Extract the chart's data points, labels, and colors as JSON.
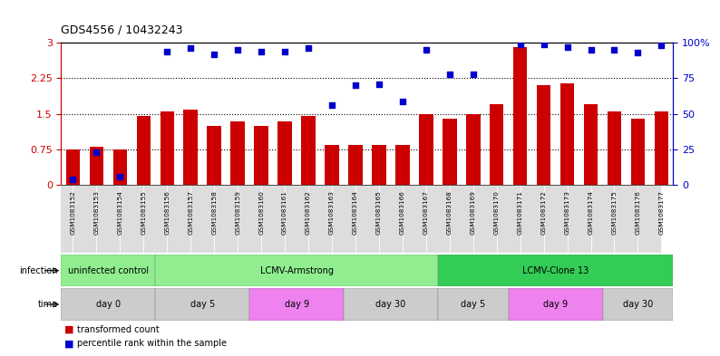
{
  "title": "GDS4556 / 10432243",
  "samples": [
    "GSM1083152",
    "GSM1083153",
    "GSM1083154",
    "GSM1083155",
    "GSM1083156",
    "GSM1083157",
    "GSM1083158",
    "GSM1083159",
    "GSM1083160",
    "GSM1083161",
    "GSM1083162",
    "GSM1083163",
    "GSM1083164",
    "GSM1083165",
    "GSM1083166",
    "GSM1083167",
    "GSM1083168",
    "GSM1083169",
    "GSM1083170",
    "GSM1083171",
    "GSM1083172",
    "GSM1083173",
    "GSM1083174",
    "GSM1083175",
    "GSM1083176",
    "GSM1083177"
  ],
  "red_bars": [
    0.75,
    0.8,
    0.75,
    1.45,
    1.55,
    1.6,
    1.25,
    1.35,
    1.25,
    1.35,
    1.45,
    0.85,
    0.85,
    0.85,
    0.85,
    1.5,
    1.4,
    1.5,
    1.7,
    2.9,
    2.1,
    2.15,
    1.7,
    1.55,
    1.4,
    1.55
  ],
  "blue_dots_pct": [
    4,
    23,
    6,
    null,
    94,
    96,
    92,
    95,
    94,
    94,
    96,
    56,
    70,
    71,
    59,
    95,
    78,
    78,
    null,
    99,
    99,
    97,
    95,
    95,
    93,
    98
  ],
  "ylim_left": [
    0,
    3
  ],
  "ylim_right": [
    0,
    100
  ],
  "yticks_left": [
    0,
    0.75,
    1.5,
    2.25,
    3
  ],
  "yticks_left_labels": [
    "0",
    "0.75",
    "1.5",
    "2.25",
    "3"
  ],
  "yticks_right": [
    0,
    25,
    50,
    75,
    100
  ],
  "yticks_right_labels": [
    "0",
    "25",
    "50",
    "75",
    "100%"
  ],
  "bar_color": "#CC0000",
  "dot_color": "#0000CC",
  "inf_groups": [
    {
      "label": "uninfected control",
      "start": 0,
      "end": 4,
      "color": "#90EE90"
    },
    {
      "label": "LCMV-Armstrong",
      "start": 4,
      "end": 16,
      "color": "#90EE90"
    },
    {
      "label": "LCMV-Clone 13",
      "start": 16,
      "end": 26,
      "color": "#33CC55"
    }
  ],
  "time_groups": [
    {
      "label": "day 0",
      "start": 0,
      "end": 4,
      "color": "#CCCCCC"
    },
    {
      "label": "day 5",
      "start": 4,
      "end": 8,
      "color": "#CCCCCC"
    },
    {
      "label": "day 9",
      "start": 8,
      "end": 12,
      "color": "#EE82EE"
    },
    {
      "label": "day 30",
      "start": 12,
      "end": 16,
      "color": "#CCCCCC"
    },
    {
      "label": "day 5",
      "start": 16,
      "end": 19,
      "color": "#CCCCCC"
    },
    {
      "label": "day 9",
      "start": 19,
      "end": 23,
      "color": "#EE82EE"
    },
    {
      "label": "day 30",
      "start": 23,
      "end": 26,
      "color": "#CCCCCC"
    }
  ]
}
